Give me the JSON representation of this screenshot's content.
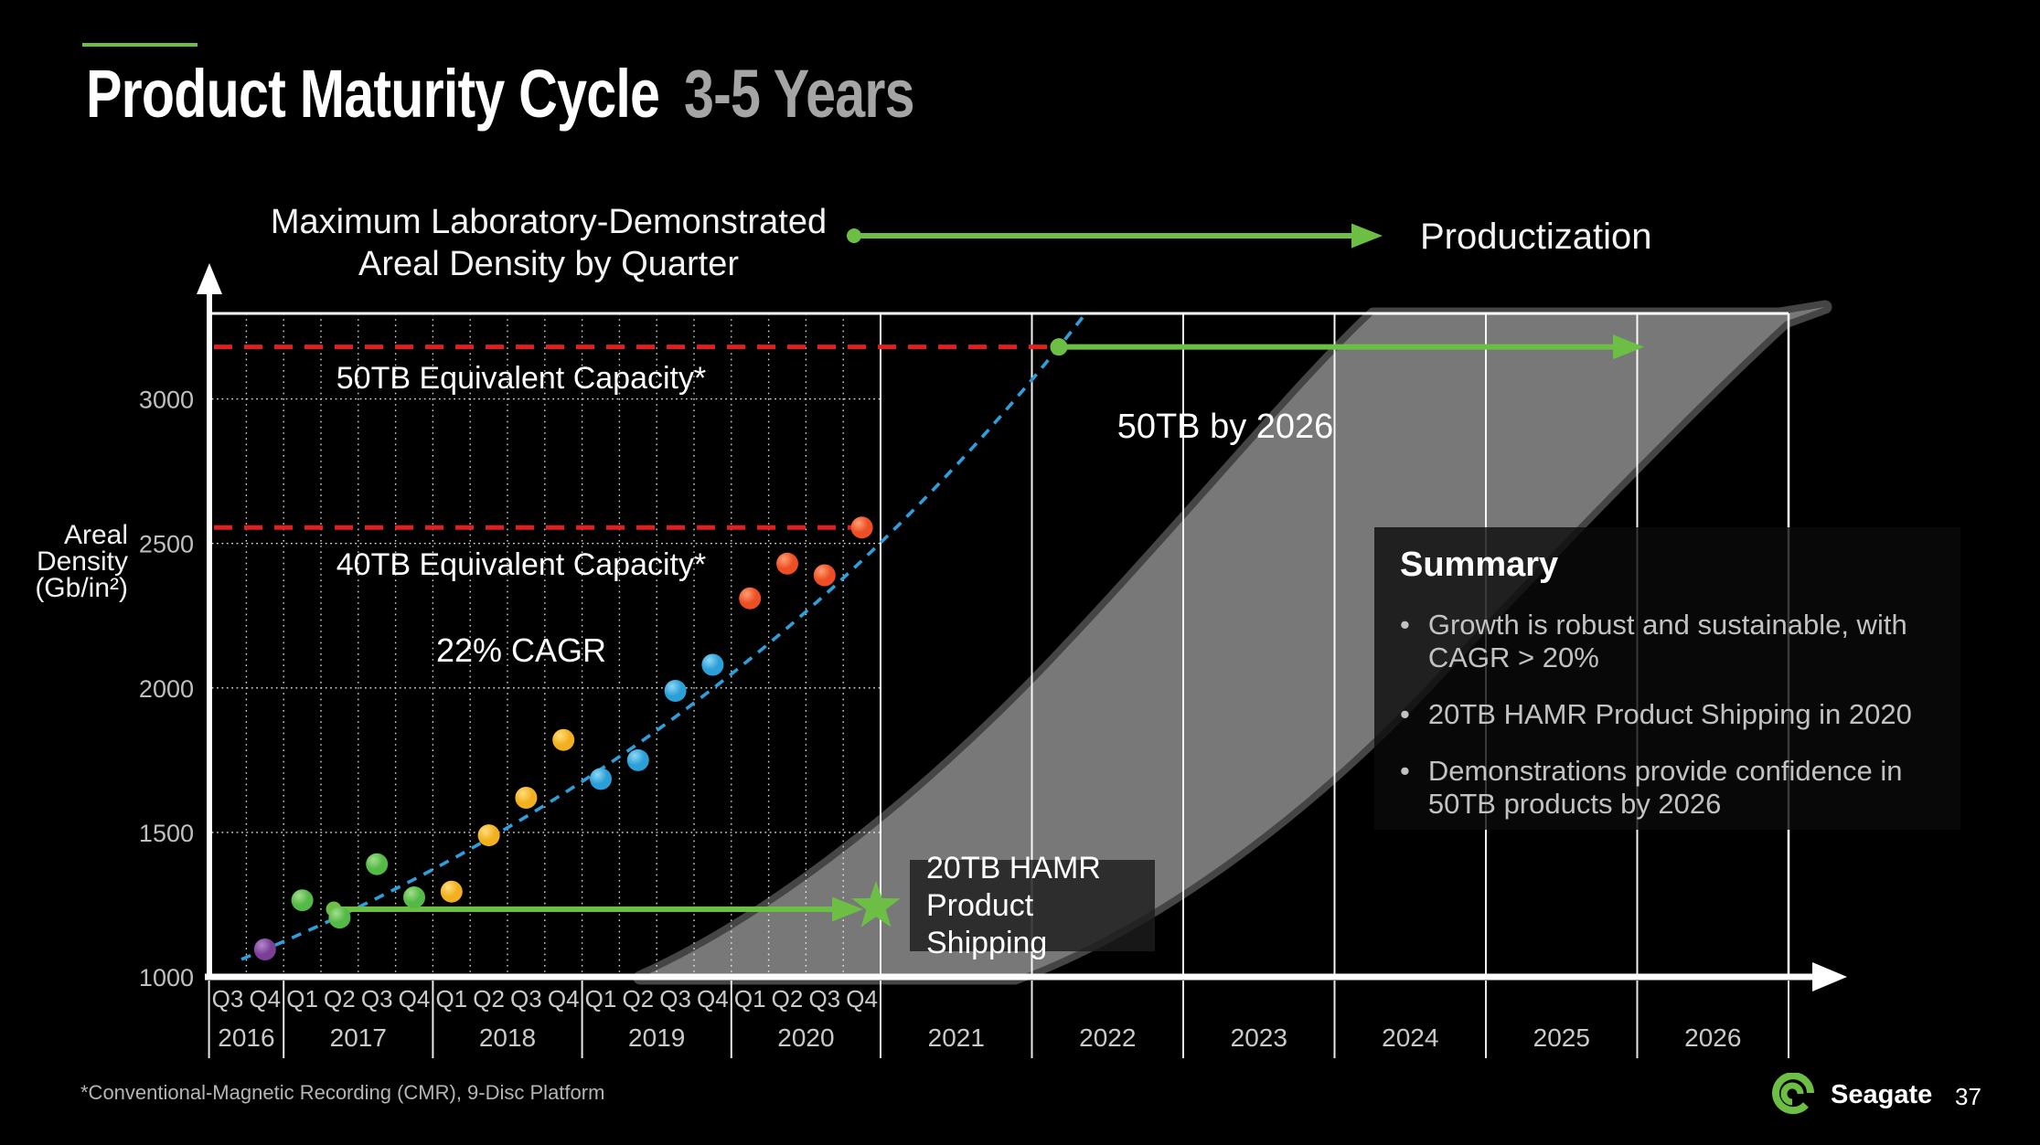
{
  "slide": {
    "title_white": "Product Maturity Cycle",
    "title_gray": "3-5 Years",
    "footer_note": "*Conventional-Magnetic Recording (CMR), 9-Disc Platform",
    "brand": "Seagate",
    "page_number": "37"
  },
  "header": {
    "chart_title_line1": "Maximum Laboratory-Demonstrated",
    "chart_title_line2": "Areal Density by Quarter",
    "arrow_to_label": "Productization"
  },
  "axis": {
    "y_label_line1": "Areal",
    "y_label_line2": "Density",
    "y_label_line3": "(Gb/in²)"
  },
  "annotations": {
    "ref_50tb": "50TB Equivalent Capacity*",
    "ref_40tb": "40TB Equivalent Capacity*",
    "cagr": "22% CAGR",
    "target": "50TB by 2026",
    "star_label_line1": "20TB HAMR",
    "star_label_line2": "Product Shipping"
  },
  "summary": {
    "title": "Summary",
    "bullets": [
      "Growth is robust and sustainable, with CAGR > 20%",
      "20TB HAMR Product Shipping in 2020",
      "Demonstrations provide confidence in 50TB products by 2026"
    ]
  },
  "chart_data": {
    "type": "scatter",
    "title": "Maximum Laboratory-Demonstrated Areal Density by Quarter",
    "ylabel": "Areal Density (Gb/in²)",
    "ylim": [
      1000,
      3350
    ],
    "yticks": [
      1000,
      1500,
      2000,
      2500,
      3000
    ],
    "x_quarter_labels": [
      "Q3",
      "Q4",
      "Q1",
      "Q2",
      "Q3",
      "Q4",
      "Q1",
      "Q2",
      "Q3",
      "Q4",
      "Q1",
      "Q2",
      "Q3",
      "Q4",
      "Q1",
      "Q2",
      "Q3",
      "Q4"
    ],
    "x_year_labels": [
      "2016",
      "2017",
      "2018",
      "2019",
      "2020",
      "2021",
      "2022",
      "2023",
      "2024",
      "2025",
      "2026"
    ],
    "grid": "dotted quarters + solid year separators",
    "points": [
      {
        "year": 2016,
        "quarter": "Q4",
        "value": 1095,
        "color": "purple"
      },
      {
        "year": 2017,
        "quarter": "Q1",
        "value": 1265,
        "color": "green"
      },
      {
        "year": 2017,
        "quarter": "Q2",
        "value": 1205,
        "color": "green"
      },
      {
        "year": 2017,
        "quarter": "Q3",
        "value": 1390,
        "color": "green"
      },
      {
        "year": 2017,
        "quarter": "Q4",
        "value": 1275,
        "color": "green"
      },
      {
        "year": 2018,
        "quarter": "Q1",
        "value": 1295,
        "color": "yellow"
      },
      {
        "year": 2018,
        "quarter": "Q2",
        "value": 1490,
        "color": "yellow"
      },
      {
        "year": 2018,
        "quarter": "Q3",
        "value": 1620,
        "color": "yellow"
      },
      {
        "year": 2018,
        "quarter": "Q4",
        "value": 1820,
        "color": "yellow"
      },
      {
        "year": 2019,
        "quarter": "Q1",
        "value": 1685,
        "color": "blue"
      },
      {
        "year": 2019,
        "quarter": "Q2",
        "value": 1750,
        "color": "blue"
      },
      {
        "year": 2019,
        "quarter": "Q3",
        "value": 1990,
        "color": "blue"
      },
      {
        "year": 2019,
        "quarter": "Q4",
        "value": 2080,
        "color": "blue"
      },
      {
        "year": 2020,
        "quarter": "Q1",
        "value": 2310,
        "color": "orange"
      },
      {
        "year": 2020,
        "quarter": "Q2",
        "value": 2430,
        "color": "orange"
      },
      {
        "year": 2020,
        "quarter": "Q3",
        "value": 2390,
        "color": "orange"
      },
      {
        "year": 2020,
        "quarter": "Q4",
        "value": 2555,
        "color": "orange"
      }
    ],
    "trend": {
      "label": "22% CAGR",
      "cagr_percent": 22,
      "style": "dashed-blue",
      "start_value": 1095,
      "end_value": 3180
    },
    "reference_lines": [
      {
        "label": "50TB Equivalent Capacity*",
        "value": 3180
      },
      {
        "label": "40TB Equivalent Capacity*",
        "value": 2555
      }
    ],
    "milestones": [
      {
        "label": "20TB HAMR Product Shipping",
        "marker": "star",
        "at_year": 2020,
        "at_quarter": "Q4",
        "value": 1245
      },
      {
        "label": "50TB by 2026",
        "marker": "arrow",
        "from_value": 3180,
        "arrow_ends_before_year": 2026
      }
    ],
    "legend_position": "none"
  },
  "colors": {
    "background": "#000000",
    "accent_green": "#6CBE45",
    "reference_red": "#E01F1F",
    "trend_blue": "#2E9FDB",
    "band_gray": "#787878",
    "band_edge_gray": "#454545",
    "grid_white": "#FFFFFF",
    "tick_gray": "#C0C0C0",
    "title_gray": "#A5A5A5",
    "dots": {
      "purple": {
        "base": "#7B3F98",
        "light": "#B389CC"
      },
      "green": {
        "base": "#53B947",
        "light": "#A4DE8C"
      },
      "yellow": {
        "base": "#F2B01E",
        "light": "#FFDE7E"
      },
      "blue": {
        "base": "#2B9FD8",
        "light": "#8FD8F5"
      },
      "orange": {
        "base": "#EE4E23",
        "light": "#FF9E74"
      }
    }
  }
}
